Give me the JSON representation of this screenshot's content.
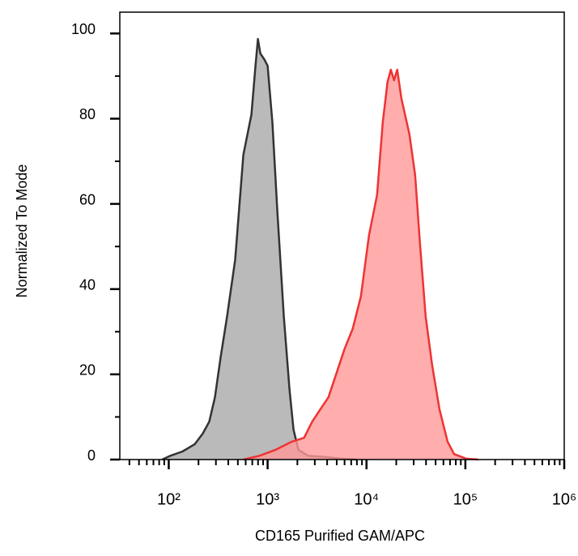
{
  "chart_data": {
    "type": "area",
    "xlabel": "CD165 Purified GAM/APC",
    "ylabel": "Normalized To Mode",
    "xscale": "log",
    "xlim": [
      32,
      1000000
    ],
    "ylim": [
      0,
      105
    ],
    "xticks": [
      {
        "value": 100,
        "label": "10²"
      },
      {
        "value": 1000,
        "label": "10³"
      },
      {
        "value": 10000,
        "label": "10⁴"
      },
      {
        "value": 100000,
        "label": "10⁵"
      },
      {
        "value": 1000000,
        "label": "10⁶"
      }
    ],
    "xminorticks": [
      40,
      50,
      60,
      70,
      80,
      90,
      200,
      300,
      400,
      500,
      600,
      700,
      800,
      900,
      2000,
      3000,
      4000,
      5000,
      6000,
      7000,
      8000,
      9000,
      20000,
      30000,
      40000,
      50000,
      60000,
      70000,
      80000,
      90000,
      200000,
      300000,
      400000,
      500000,
      600000,
      700000,
      800000,
      900000
    ],
    "yticks": [
      0,
      20,
      40,
      60,
      80,
      100
    ],
    "yminorticks": [
      10,
      30,
      50,
      70,
      90
    ],
    "series": [
      {
        "color": "#333333",
        "fill": "#a9a9a9",
        "x": [
          86,
          104,
          138,
          183,
          221,
          257,
          293,
          335,
          389,
          470,
          568,
          686,
          754,
          798,
          844,
          927,
          1000,
          1119,
          1254,
          1458,
          1665,
          1830,
          2047,
          2570,
          3748,
          5470,
          7980
        ],
        "values": [
          0,
          0.9,
          1.9,
          3.6,
          6.1,
          8.9,
          14.6,
          24.1,
          33.6,
          46.9,
          71.5,
          81,
          92.4,
          98.7,
          95.3,
          93.9,
          92.4,
          79.1,
          58.3,
          33.6,
          16.5,
          7,
          2.3,
          0.9,
          0.6,
          0.2,
          0
        ]
      },
      {
        "color": "#ee3333",
        "fill": "#ff9999",
        "x": [
          568,
          828,
          1208,
          1762,
          2338,
          2825,
          3413,
          4121,
          4977,
          6012,
          7261,
          8770,
          10590,
          12790,
          14590,
          16330,
          17620,
          19010,
          20480,
          22510,
          27190,
          31030,
          34750,
          39660,
          46100,
          54700,
          66100,
          76800,
          101900,
          135300
        ],
        "values": [
          0,
          0.9,
          2.3,
          4.2,
          5.1,
          8.9,
          11.8,
          14.6,
          20.3,
          26,
          30.7,
          38.3,
          52.6,
          62.1,
          79.1,
          88.6,
          91.5,
          89,
          91.5,
          84.8,
          76.3,
          66.8,
          50.7,
          33.6,
          22.2,
          11.8,
          4.2,
          1.3,
          0.2,
          0
        ]
      }
    ]
  }
}
